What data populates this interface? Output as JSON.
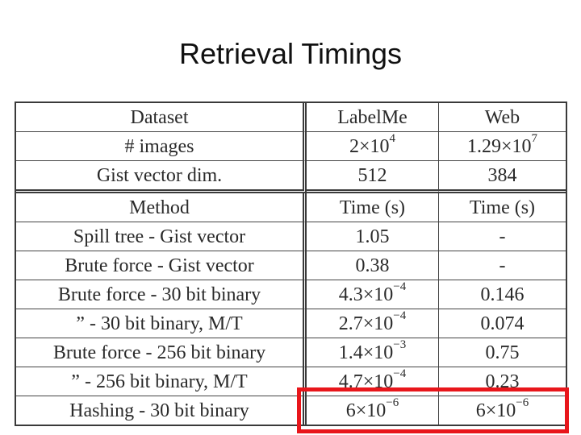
{
  "title": "Retrieval Timings",
  "header_rows": [
    {
      "label": "Dataset",
      "labelme": "LabelMe",
      "web": "Web"
    },
    {
      "label": "# images",
      "labelme": {
        "base": "2×10",
        "exp": "4"
      },
      "web": {
        "base": "1.29×10",
        "exp": "7"
      }
    },
    {
      "label": "Gist vector dim.",
      "labelme": "512",
      "web": "384"
    }
  ],
  "method_header": {
    "label": "Method",
    "labelme": "Time (s)",
    "web": "Time (s)"
  },
  "rows": [
    {
      "method": "Spill tree - Gist vector",
      "labelme": {
        "base": "1.05"
      },
      "web": {
        "base": "-"
      }
    },
    {
      "method": "Brute force - Gist vector",
      "labelme": {
        "base": "0.38"
      },
      "web": {
        "base": "-"
      }
    },
    {
      "method": "Brute force - 30 bit binary",
      "labelme": {
        "base": "4.3×10",
        "exp": "−4"
      },
      "web": {
        "base": "0.146"
      }
    },
    {
      "method": "” - 30 bit binary, M/T",
      "labelme": {
        "base": "2.7×10",
        "exp": "−4"
      },
      "web": {
        "base": "0.074"
      }
    },
    {
      "method": "Brute force - 256 bit binary",
      "labelme": {
        "base": "1.4×10",
        "exp": "−3"
      },
      "web": {
        "base": "0.75"
      }
    },
    {
      "method": "” - 256 bit binary, M/T",
      "labelme": {
        "base": "4.7×10",
        "exp": "−4"
      },
      "web": {
        "base": "0.23"
      }
    },
    {
      "method": "Hashing - 30 bit binary",
      "labelme": {
        "base": "6×10",
        "exp": "−6"
      },
      "web": {
        "base": "6×10",
        "exp": "−6"
      }
    }
  ],
  "highlight_color": "#e8161b"
}
